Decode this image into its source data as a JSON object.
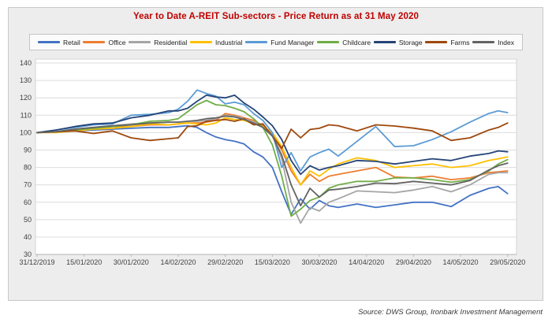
{
  "title": "Year to Date A-REIT Sub-sectors - Price Return as at 31 May 2020",
  "source": "Source: DWS Group, Ironbark Investment Management",
  "title_color": "#c00000",
  "chart_data": {
    "type": "line",
    "title": "Year to Date A-REIT Sub-sectors - Price Return as at 31 May 2020",
    "legend_position": "top",
    "grid": "horizontal",
    "ylim": [
      30,
      140
    ],
    "y_tick_labels": [
      "140",
      "130",
      "120",
      "110",
      "100",
      "90",
      "80",
      "70",
      "60",
      "50",
      "40",
      "30"
    ],
    "x_tick_labels": [
      "31/12/2019",
      "15/01/2020",
      "30/01/2020",
      "14/02/2020",
      "29/02/2020",
      "15/03/2020",
      "30/03/2020",
      "14/04/2020",
      "29/04/2020",
      "14/05/2020",
      "29/05/2020"
    ],
    "x_tick_days": [
      0,
      15,
      30,
      45,
      60,
      75,
      90,
      105,
      120,
      135,
      150
    ],
    "x_days": [
      0,
      6,
      12,
      18,
      24,
      30,
      36,
      42,
      45,
      48,
      51,
      54,
      57,
      60,
      63,
      66,
      69,
      72,
      75,
      78,
      81,
      84,
      87,
      90,
      93,
      96,
      102,
      108,
      114,
      120,
      126,
      132,
      138,
      144,
      147,
      150
    ],
    "series": [
      {
        "name": "Retail",
        "color": "#4472C4",
        "values": [
          100,
          100.5,
          101,
          101.5,
          102,
          102.5,
          103,
          103,
          103.5,
          104,
          103,
          100,
          97.5,
          96,
          95,
          93.5,
          89,
          86,
          80,
          66,
          53,
          62,
          56,
          61,
          58,
          57,
          59,
          57,
          58.5,
          60,
          60,
          57.5,
          64,
          68,
          69,
          65
        ]
      },
      {
        "name": "Office",
        "color": "#ED7D31",
        "values": [
          100,
          100.5,
          101.5,
          102,
          103.5,
          103.5,
          104.5,
          104.5,
          105,
          105.5,
          105.5,
          106,
          107,
          111,
          110,
          108.5,
          107,
          104,
          99,
          90,
          78,
          70,
          76,
          72,
          75,
          76,
          78,
          80,
          74.5,
          74,
          75,
          73,
          74,
          77,
          77.5,
          78
        ]
      },
      {
        "name": "Residential",
        "color": "#A5A5A5",
        "values": [
          100,
          100.5,
          102,
          103,
          104,
          105,
          105.5,
          106,
          106,
          106.5,
          106.5,
          107,
          108,
          110,
          109.5,
          108,
          106,
          103.5,
          99,
          85,
          60,
          48,
          57,
          55,
          60,
          62,
          66.5,
          66,
          65.5,
          67,
          69,
          66,
          70,
          76,
          77,
          77
        ]
      },
      {
        "name": "Industrial",
        "color": "#FFC000",
        "values": [
          100,
          100,
          101,
          102,
          102.5,
          103.5,
          105,
          104.5,
          105,
          105.5,
          105,
          104.5,
          105.5,
          108.5,
          107.5,
          107,
          105,
          103.5,
          100,
          92,
          80,
          70,
          78,
          75,
          79,
          82,
          85.5,
          84,
          80,
          81,
          82,
          80,
          81,
          84,
          85,
          86
        ]
      },
      {
        "name": "Fund Manager",
        "color": "#5B9BD5",
        "values": [
          100,
          101.5,
          103,
          104.5,
          105,
          110,
          110.5,
          111.5,
          113.5,
          118,
          124.5,
          122.5,
          121,
          116.5,
          117.5,
          116,
          111,
          107,
          100,
          80,
          88.5,
          78,
          86,
          88.5,
          90.5,
          86.5,
          95,
          103.5,
          92,
          92.5,
          96,
          100.5,
          106,
          111,
          112.5,
          111.5
        ]
      },
      {
        "name": "Childcare",
        "color": "#70AD47",
        "values": [
          100,
          100.5,
          101.5,
          102.5,
          103.5,
          104.5,
          106.5,
          107,
          108,
          112,
          116,
          118.5,
          116,
          115.5,
          114,
          112,
          108,
          103,
          93,
          75,
          52,
          56,
          61,
          63,
          68,
          70,
          72,
          72,
          74,
          74,
          73,
          71.5,
          73,
          78,
          82,
          84.5
        ]
      },
      {
        "name": "Storage",
        "color": "#264478",
        "values": [
          100,
          101.5,
          103.5,
          105,
          105.5,
          108.5,
          110,
          112.5,
          112.5,
          114,
          118,
          121.5,
          120.5,
          120,
          121.5,
          117,
          113.5,
          109,
          104,
          96,
          84,
          76,
          81,
          78.5,
          80,
          81,
          84,
          83.5,
          82,
          83.5,
          85,
          84,
          86.5,
          88,
          89.5,
          89
        ]
      },
      {
        "name": "Farms",
        "color": "#9E480E",
        "values": [
          100,
          100.5,
          101,
          99.5,
          101,
          97,
          95.5,
          96.5,
          97,
          103.5,
          104,
          106.5,
          107,
          107.5,
          106.5,
          108,
          104.5,
          105,
          98,
          91,
          102,
          97,
          101.8,
          102.5,
          104.5,
          104,
          101,
          104.5,
          103.8,
          102.6,
          101,
          95.5,
          97,
          101.5,
          103,
          105.5
        ]
      },
      {
        "name": "Index",
        "color": "#636363",
        "values": [
          100,
          100.5,
          102,
          103,
          104,
          104.5,
          105.5,
          106,
          106,
          106.5,
          107,
          108,
          108.5,
          109.5,
          109,
          107.5,
          105.5,
          103,
          98,
          87,
          70,
          58,
          68,
          63,
          67,
          67.5,
          69,
          71,
          70.7,
          72,
          71,
          70,
          72.5,
          78.5,
          81,
          82.5
        ]
      }
    ]
  }
}
